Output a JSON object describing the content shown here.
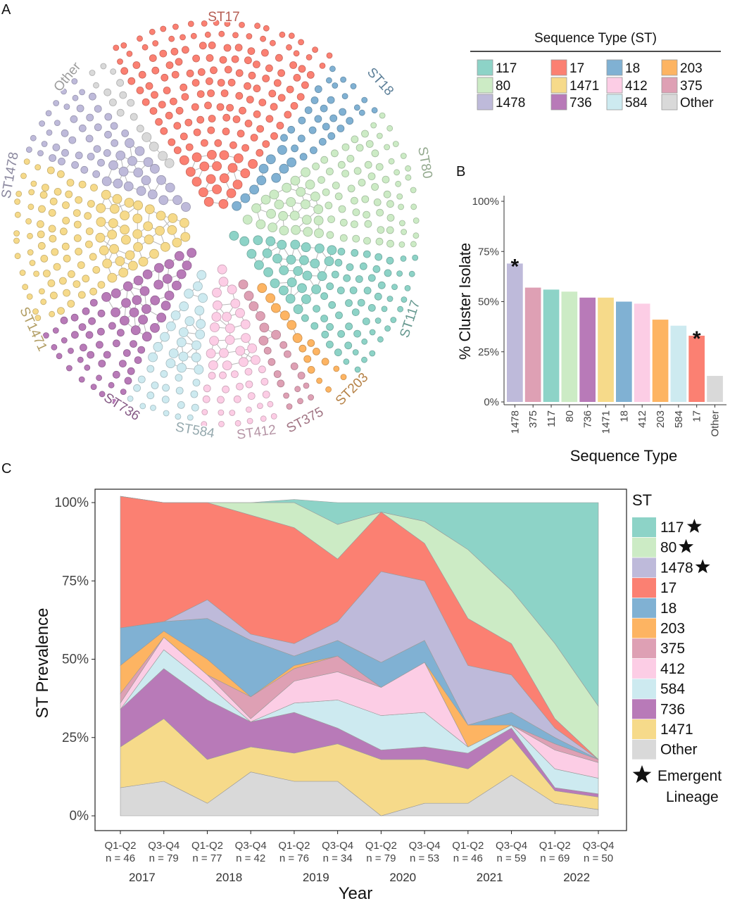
{
  "panels": {
    "a": "A",
    "b": "B",
    "c": "C"
  },
  "colors": {
    "117": "#8dd3c7",
    "80": "#ccebc5",
    "1478": "#bebada",
    "17": "#fb8072",
    "18": "#80b1d3",
    "203": "#fdb462",
    "375": "#dea0b4",
    "412": "#fccde5",
    "584": "#cdeaf0",
    "736": "#b87ab8",
    "1471": "#f6da8a",
    "Other": "#d9d9d9"
  },
  "network": {
    "labels": [
      "ST17",
      "ST18",
      "ST80",
      "ST117",
      "ST203",
      "ST375",
      "ST412",
      "ST584",
      "ST736",
      "ST1471",
      "ST1478",
      "Other"
    ],
    "legend_title": "Sequence Type (ST)",
    "legend_items": [
      "117",
      "17",
      "18",
      "203",
      "80",
      "1471",
      "412",
      "375",
      "1478",
      "736",
      "584",
      "Other"
    ]
  },
  "chart_data": [
    {
      "type": "bar",
      "title": "",
      "xlabel": "Sequence Type",
      "ylabel": "% Cluster Isolate",
      "ylim": [
        0,
        100
      ],
      "yticks": [
        "0%",
        "25%",
        "50%",
        "75%",
        "100%"
      ],
      "categories": [
        "1478",
        "375",
        "117",
        "80",
        "736",
        "1471",
        "18",
        "412",
        "203",
        "584",
        "17",
        "Other"
      ],
      "values": [
        69,
        57,
        56,
        55,
        52,
        52,
        50,
        49,
        41,
        38,
        33,
        13
      ],
      "annotations": [
        {
          "category": "1478",
          "text": "*"
        },
        {
          "category": "17",
          "text": "*"
        }
      ]
    },
    {
      "type": "area",
      "title": "",
      "xlabel": "Year",
      "ylabel": "ST Prevalence",
      "ylim": [
        0,
        100
      ],
      "yticks": [
        "0%",
        "25%",
        "50%",
        "75%",
        "100%"
      ],
      "x": [
        "Q1-Q2",
        "Q3-Q4",
        "Q1-Q2",
        "Q3-Q4",
        "Q1-Q2",
        "Q3-Q4",
        "Q1-Q2",
        "Q3-Q4",
        "Q1-Q2",
        "Q3-Q4",
        "Q1-Q2",
        "Q3-Q4"
      ],
      "n": [
        "n = 46",
        "n = 79",
        "n = 77",
        "n = 42",
        "n = 76",
        "n = 34",
        "n = 79",
        "n = 53",
        "n = 46",
        "n = 59",
        "n = 69",
        "n = 50"
      ],
      "years": [
        "2017",
        "2018",
        "2019",
        "2020",
        "2021",
        "2022"
      ],
      "legend_title": "ST",
      "emergent_label": [
        "Emergent",
        "Lineage"
      ],
      "series": [
        {
          "name": "Other",
          "values": [
            9,
            11,
            4,
            14,
            11,
            11,
            0,
            4,
            4,
            13,
            4,
            2
          ]
        },
        {
          "name": "1471",
          "values": [
            13,
            20,
            14,
            8,
            9,
            12,
            18,
            14,
            11,
            12,
            4,
            4
          ]
        },
        {
          "name": "736",
          "values": [
            12,
            16,
            19,
            8,
            13,
            5,
            3,
            4,
            5,
            3,
            1,
            1
          ]
        },
        {
          "name": "584",
          "values": [
            0,
            6,
            5,
            0,
            3,
            9,
            11,
            11,
            2,
            1,
            6,
            5
          ]
        },
        {
          "name": "412",
          "values": [
            2,
            4,
            3,
            1,
            7,
            9,
            9,
            16,
            0,
            0,
            6,
            5
          ]
        },
        {
          "name": "375",
          "values": [
            3,
            0,
            0,
            7,
            4,
            5,
            0,
            0,
            0,
            0,
            2,
            1
          ]
        },
        {
          "name": "203",
          "values": [
            9,
            2,
            5,
            0,
            1,
            0,
            0,
            0,
            7,
            0,
            0,
            0
          ]
        },
        {
          "name": "18",
          "values": [
            12,
            3,
            13,
            18,
            3,
            5,
            8,
            7,
            0,
            4,
            2,
            0
          ]
        },
        {
          "name": "1478",
          "values": [
            0,
            0,
            6,
            2,
            4,
            6,
            29,
            19,
            19,
            12,
            3,
            0
          ]
        },
        {
          "name": "17",
          "values": [
            42,
            38,
            31,
            38,
            37,
            20,
            19,
            12,
            15,
            10,
            3,
            0
          ]
        },
        {
          "name": "80",
          "values": [
            0,
            0,
            0,
            4,
            8,
            11,
            0,
            7,
            22,
            17,
            24,
            17
          ]
        },
        {
          "name": "117",
          "values": [
            0,
            0,
            0,
            0,
            1,
            7,
            3,
            6,
            15,
            28,
            45,
            65
          ]
        }
      ],
      "legend_order": [
        "117",
        "80",
        "1478",
        "17",
        "18",
        "203",
        "375",
        "412",
        "584",
        "736",
        "1471",
        "Other"
      ],
      "emergent": [
        "117",
        "80",
        "1478"
      ]
    }
  ]
}
